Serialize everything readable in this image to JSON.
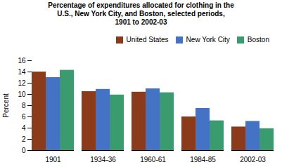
{
  "chart_data": {
    "type": "bar",
    "title": "Percentage of expenditures allocated for clothing in the\nU.S., New York City, and Boston, selected periods,\n1901 to 2002-03",
    "categories": [
      "1901",
      "1934-36",
      "1960-61",
      "1984-85",
      "2002-03"
    ],
    "series": [
      {
        "name": "United States",
        "color": "#8B3A1A",
        "values": [
          14.0,
          10.5,
          10.4,
          6.0,
          4.2
        ]
      },
      {
        "name": "New York City",
        "color": "#4472C4",
        "values": [
          13.0,
          10.9,
          11.0,
          7.5,
          5.2
        ]
      },
      {
        "name": "Boston",
        "color": "#3A9B6F",
        "values": [
          14.3,
          9.9,
          10.3,
          5.3,
          3.9
        ]
      }
    ],
    "ylabel": "Percent",
    "ylim": [
      0,
      16
    ],
    "yticks": [
      0,
      2,
      4,
      6,
      8,
      10,
      12,
      14,
      16
    ],
    "grid": false,
    "legend": "upper right"
  }
}
